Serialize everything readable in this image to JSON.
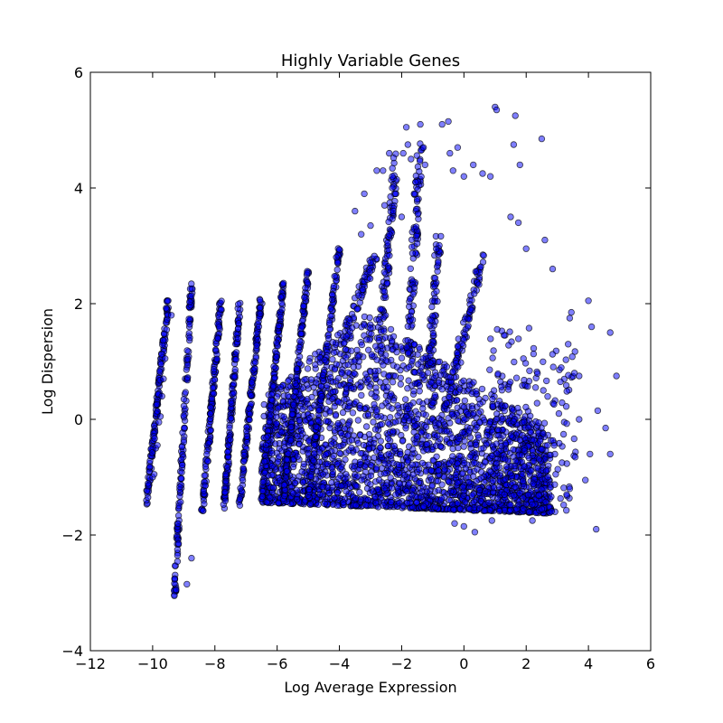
{
  "chart_data": {
    "type": "scatter",
    "title": "Highly Variable Genes",
    "xlabel": "Log Average Expression",
    "ylabel": "Log Dispersion",
    "xlim": [
      -12,
      6
    ],
    "ylim": [
      -4,
      6
    ],
    "xticks": [
      -12,
      -10,
      -8,
      -6,
      -4,
      -2,
      0,
      2,
      4,
      6
    ],
    "yticks": [
      -4,
      -2,
      0,
      2,
      4,
      6
    ],
    "xtick_labels": [
      "−12",
      "−10",
      "−8",
      "−6",
      "−4",
      "−2",
      "0",
      "2",
      "4",
      "6"
    ],
    "ytick_labels": [
      "−4",
      "−2",
      "0",
      "2",
      "4",
      "6"
    ],
    "grid": false,
    "legend": null,
    "marker_color": "#0000ff",
    "marker_edge_color": "#000000",
    "marker_alpha": 0.5,
    "series": [
      {
        "stripes": [
          {
            "x0": -10.2,
            "y0": -1.45,
            "x1": -9.5,
            "y1": 2.05
          },
          {
            "x0": -9.3,
            "y0": -3.1,
            "x1": -8.75,
            "y1": 2.35
          },
          {
            "x0": -8.4,
            "y0": -1.6,
            "x1": -7.8,
            "y1": 2.1
          },
          {
            "x0": -7.7,
            "y0": -1.5,
            "x1": -7.2,
            "y1": 2.05
          },
          {
            "x0": -7.2,
            "y0": -1.45,
            "x1": -6.5,
            "y1": 2.15
          },
          {
            "x0": -6.5,
            "y0": -1.4,
            "x1": -5.8,
            "y1": 2.35
          },
          {
            "x0": -5.8,
            "y0": -1.4,
            "x1": -5.0,
            "y1": 2.6
          },
          {
            "x0": -5.0,
            "y0": -1.35,
            "x1": -4.0,
            "y1": 2.95
          }
        ],
        "blob": {
          "x": [
            -6.5,
            2.8
          ],
          "y": [
            -1.6,
            1.8
          ]
        },
        "sparse_points": [
          [
            -10.2,
            -1.4
          ],
          [
            -10.15,
            -1.35
          ],
          [
            -10.0,
            -1.0
          ],
          [
            -9.95,
            -0.95
          ],
          [
            -9.9,
            -0.5
          ],
          [
            -9.85,
            -0.45
          ],
          [
            -9.8,
            -0.05
          ],
          [
            -9.75,
            0.05
          ],
          [
            -9.7,
            0.4
          ],
          [
            -9.65,
            0.7
          ],
          [
            -9.6,
            1.05
          ],
          [
            -9.55,
            1.55
          ],
          [
            -9.52,
            1.8
          ],
          [
            -9.5,
            2.05
          ],
          [
            -9.4,
            1.8
          ],
          [
            -8.9,
            -2.85
          ],
          [
            -8.75,
            -2.4
          ],
          [
            -4.1,
            2.8
          ],
          [
            -3.5,
            3.6
          ],
          [
            -3.3,
            3.2
          ],
          [
            -3.2,
            3.9
          ],
          [
            -3.0,
            3.35
          ],
          [
            -2.8,
            4.3
          ],
          [
            -2.6,
            4.3
          ],
          [
            -2.55,
            3.7
          ],
          [
            -2.4,
            4.6
          ],
          [
            -2.3,
            4.2
          ],
          [
            -2.2,
            3.9
          ],
          [
            -2.0,
            3.5
          ],
          [
            -1.95,
            4.6
          ],
          [
            -1.85,
            5.05
          ],
          [
            -1.8,
            4.75
          ],
          [
            -1.7,
            4.5
          ],
          [
            -1.6,
            3.9
          ],
          [
            -1.55,
            4.1
          ],
          [
            -1.4,
            5.1
          ],
          [
            -1.3,
            4.7
          ],
          [
            -1.25,
            4.4
          ],
          [
            -0.7,
            5.1
          ],
          [
            -0.5,
            5.15
          ],
          [
            -0.45,
            4.6
          ],
          [
            -0.35,
            4.3
          ],
          [
            -0.2,
            4.7
          ],
          [
            0.0,
            4.2
          ],
          [
            0.3,
            4.4
          ],
          [
            0.6,
            4.25
          ],
          [
            0.85,
            4.2
          ],
          [
            1.0,
            5.4
          ],
          [
            1.05,
            5.35
          ],
          [
            1.6,
            4.75
          ],
          [
            1.65,
            5.25
          ],
          [
            1.8,
            4.4
          ],
          [
            2.5,
            4.85
          ],
          [
            1.5,
            3.5
          ],
          [
            1.75,
            3.4
          ],
          [
            2.0,
            2.95
          ],
          [
            2.6,
            3.1
          ],
          [
            2.85,
            2.6
          ],
          [
            3.4,
            1.75
          ],
          [
            3.45,
            1.85
          ],
          [
            3.35,
            1.3
          ],
          [
            4.0,
            2.05
          ],
          [
            4.1,
            1.6
          ],
          [
            4.7,
            1.5
          ],
          [
            4.9,
            0.75
          ],
          [
            3.7,
            0.75
          ],
          [
            3.55,
            0.8
          ],
          [
            4.3,
            0.15
          ],
          [
            4.55,
            -0.15
          ],
          [
            4.7,
            -0.6
          ],
          [
            4.05,
            -0.6
          ],
          [
            3.9,
            -1.05
          ],
          [
            3.4,
            -1.2
          ],
          [
            4.25,
            -1.9
          ],
          [
            3.3,
            -1.3
          ],
          [
            2.95,
            -0.95
          ],
          [
            2.5,
            -1.55
          ],
          [
            2.2,
            -1.75
          ],
          [
            1.7,
            -1.55
          ],
          [
            1.3,
            -1.3
          ],
          [
            0.9,
            -1.75
          ],
          [
            0.35,
            -1.95
          ],
          [
            0.0,
            -1.85
          ],
          [
            -0.3,
            -1.8
          ],
          [
            2.1,
            -1.6
          ],
          [
            3.1,
            0.65
          ],
          [
            2.3,
            0.55
          ],
          [
            2.55,
            0.5
          ],
          [
            3.05,
            0.1
          ],
          [
            3.7,
            0.0
          ],
          [
            2.9,
            -0.45
          ],
          [
            3.15,
            -0.75
          ]
        ]
      }
    ]
  }
}
